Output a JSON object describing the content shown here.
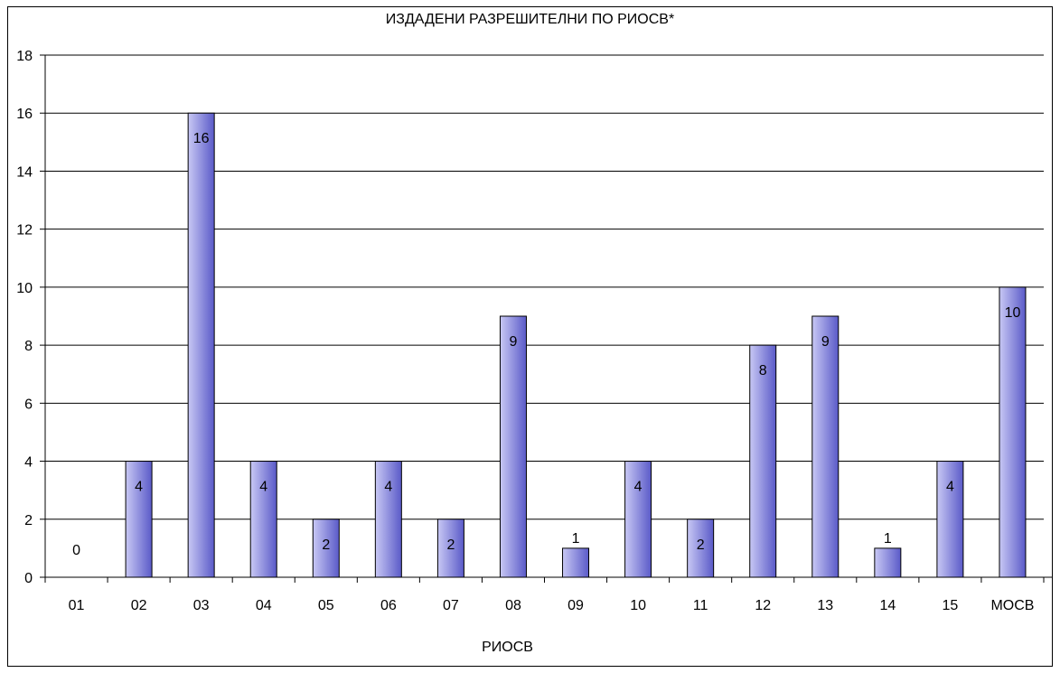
{
  "chart_data": {
    "type": "bar",
    "title": "ИЗДАДЕНИ РАЗРЕШИТЕЛНИ ПО РИОСВ*",
    "xlabel": "РИОСВ",
    "ylabel": "",
    "ylim": [
      0,
      18
    ],
    "yticks": [
      "0",
      "2",
      "4",
      "6",
      "8",
      "10",
      "12",
      "14",
      "16",
      "18"
    ],
    "categories": [
      "01",
      "02",
      "03",
      "04",
      "05",
      "06",
      "07",
      "08",
      "09",
      "10",
      "11",
      "12",
      "13",
      "14",
      "15",
      "МОСВ"
    ],
    "values": [
      0,
      4,
      16,
      4,
      2,
      4,
      2,
      9,
      1,
      4,
      2,
      8,
      9,
      1,
      4,
      10
    ],
    "grid": true,
    "legend": "none",
    "colors": {
      "bar_light": "#c8c8f4",
      "bar_dark": "#5a5ac8",
      "grid": "#000000"
    }
  }
}
